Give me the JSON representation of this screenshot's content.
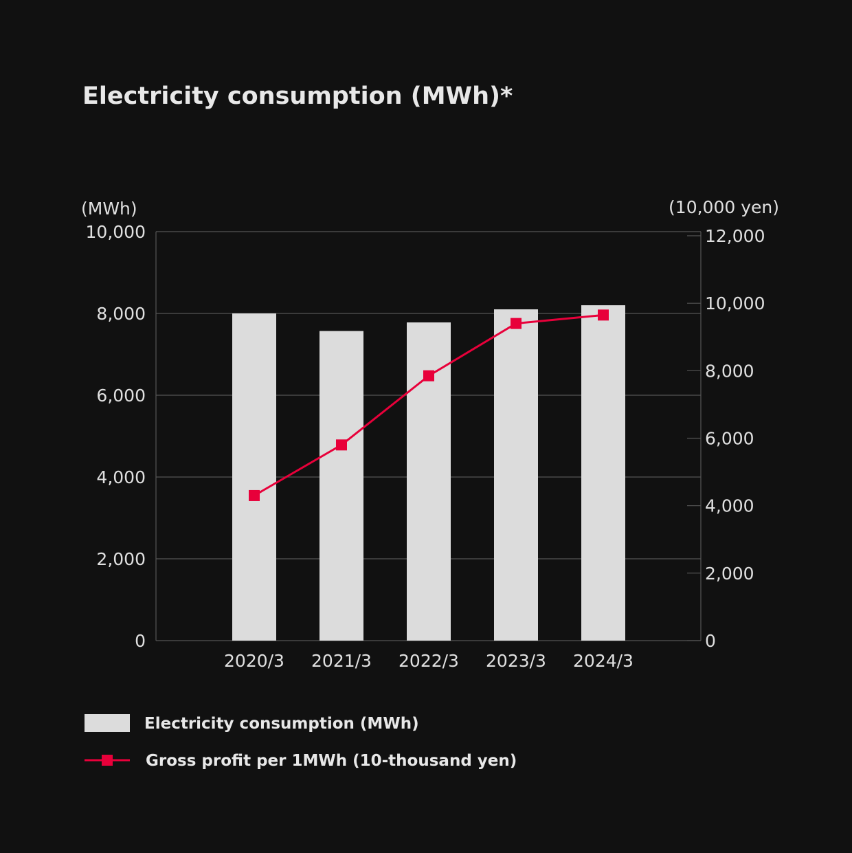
{
  "chart_data": {
    "type": "bar",
    "title": "Electricity consumption (MWh)*",
    "categories": [
      "2020/3",
      "2021/3",
      "2022/3",
      "2023/3",
      "2024/3"
    ],
    "y_left": {
      "unit_label": "(MWh)",
      "ylim": [
        0,
        10000
      ],
      "ticks": [
        0,
        2000,
        4000,
        6000,
        8000,
        10000
      ],
      "tick_labels": [
        "0",
        "2,000",
        "4,000",
        "6,000",
        "8,000",
        "10,000"
      ]
    },
    "y_right": {
      "unit_label": "(10,000 yen)",
      "ylim": [
        0,
        12000
      ],
      "ticks": [
        0,
        2000,
        4000,
        6000,
        8000,
        10000,
        12000
      ],
      "tick_labels": [
        "0",
        "2,000",
        "4,000",
        "6,000",
        "8,000",
        "10,000",
        "12,000"
      ]
    },
    "series": [
      {
        "name": "Electricity consumption (MWh)",
        "type": "bar",
        "axis": "left",
        "color": "#dcdcdc",
        "values": [
          8000,
          7570,
          7780,
          8100,
          8200
        ]
      },
      {
        "name": "Gross profit per 1MWh (10-thousand yen)",
        "type": "line",
        "axis": "right",
        "color": "#e8003a",
        "values": [
          4300,
          5800,
          7850,
          9400,
          9650
        ]
      }
    ],
    "grid": true,
    "legend_position": "bottom-left"
  },
  "colors": {
    "background": "#111111",
    "grid": "#555555",
    "text": "#e0e0e0",
    "bar": "#dcdcdc",
    "line": "#e8003a"
  }
}
